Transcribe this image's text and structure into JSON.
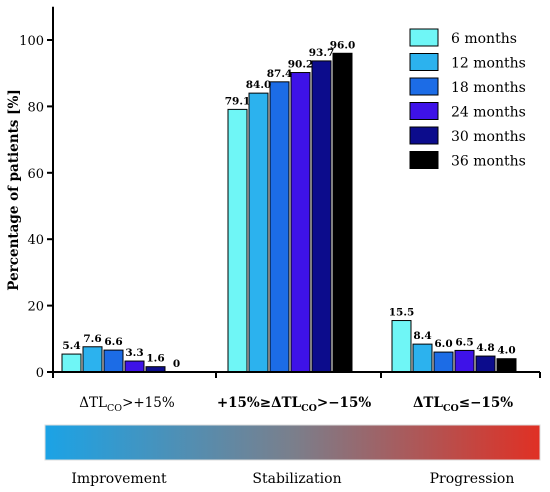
{
  "chart_data": {
    "type": "bar",
    "ylabel": "Percentage of patients [%]",
    "ylim": [
      0,
      110
    ],
    "yticks": [
      0,
      20,
      40,
      60,
      80,
      100
    ],
    "categories": [
      {
        "pre": "ΔTL",
        "sub": "CO",
        "post": ">+15%"
      },
      {
        "pre": "+15%≥ΔTL",
        "sub": "CO",
        "post": ">−15%"
      },
      {
        "pre": "ΔTL",
        "sub": "CO",
        "post": "≤−15%"
      }
    ],
    "series": [
      {
        "name": "6 months",
        "color": "#6ff6f6",
        "values": [
          5.4,
          79.1,
          15.5
        ],
        "labels": [
          "5.4",
          "79.1",
          "15.5"
        ]
      },
      {
        "name": "12 months",
        "color": "#2cb2ee",
        "values": [
          7.6,
          84.0,
          8.4
        ],
        "labels": [
          "7.6",
          "84.0",
          "8.4"
        ]
      },
      {
        "name": "18 months",
        "color": "#1c6ce6",
        "values": [
          6.6,
          87.4,
          6.0
        ],
        "labels": [
          "6.6",
          "87.4",
          "6.0"
        ]
      },
      {
        "name": "24 months",
        "color": "#3e12e8",
        "values": [
          3.3,
          90.2,
          6.5
        ],
        "labels": [
          "3.3",
          "90.2",
          "6.5"
        ]
      },
      {
        "name": "30 months",
        "color": "#0c0c8c",
        "values": [
          1.6,
          93.7,
          4.8
        ],
        "labels": [
          "1.6",
          "93.7",
          "4.8"
        ]
      },
      {
        "name": "36 months",
        "color": "#000000",
        "values": [
          0,
          96.0,
          4.0
        ],
        "labels": [
          "0",
          "96.0",
          "4.0"
        ]
      }
    ],
    "legend_position": "top-right",
    "grid": false
  },
  "scale": {
    "labels": [
      "Improvement",
      "Stabilization",
      "Progression"
    ],
    "gradient_colors": [
      "#1ba3e6",
      "#7a7f8c",
      "#e03024"
    ]
  }
}
